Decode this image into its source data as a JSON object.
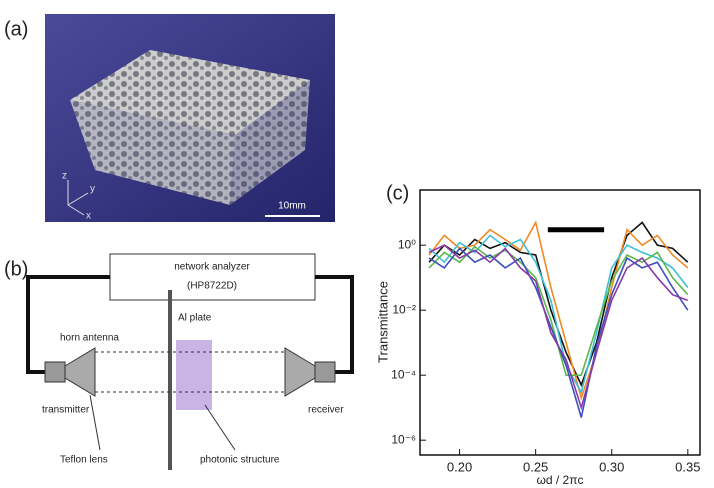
{
  "panels": {
    "a": "(a)",
    "b": "(b)"
  },
  "photo": {
    "scale_bar": "10mm",
    "axes": [
      "z",
      "y",
      "x"
    ]
  },
  "diagram": {
    "analyzer": "network analyzer",
    "model": "(HP8722D)",
    "horn": "horn antenna",
    "plate": "Al plate",
    "transmitter": "transmitter",
    "lens": "Teflon lens",
    "structure": "photonic structure",
    "receiver": "receiver"
  },
  "chart_data": {
    "type": "line",
    "label": "(c)",
    "ylabel": "Transmittance",
    "xlabel": "ωd / 2πc",
    "log_y": true,
    "x": [
      0.18,
      0.19,
      0.2,
      0.21,
      0.22,
      0.23,
      0.24,
      0.25,
      0.26,
      0.27,
      0.28,
      0.29,
      0.3,
      0.31,
      0.32,
      0.33,
      0.34,
      0.35
    ],
    "series": [
      {
        "color": "#111111",
        "values": [
          0.3,
          1.0,
          0.5,
          1.5,
          0.8,
          1.2,
          0.6,
          0.5,
          0.01,
          0.0005,
          5e-05,
          0.001,
          0.1,
          2,
          5,
          1,
          0.8,
          0.3
        ]
      },
      {
        "color": "#f08a24",
        "values": [
          0.5,
          2,
          0.8,
          1,
          3,
          1.5,
          0.7,
          5,
          0.05,
          0.001,
          2e-05,
          0.0005,
          0.05,
          3,
          1,
          2,
          0.5,
          0.2
        ]
      },
      {
        "color": "#3cc0d8",
        "values": [
          0.8,
          0.3,
          1.2,
          0.6,
          2,
          0.9,
          1.5,
          0.3,
          0.02,
          0.0002,
          3e-05,
          0.002,
          0.2,
          1,
          0.6,
          0.4,
          0.2,
          0.05
        ]
      },
      {
        "color": "#5cb84a",
        "values": [
          0.2,
          0.6,
          0.3,
          0.9,
          0.4,
          0.7,
          0.3,
          0.1,
          0.005,
          0.0001,
          0.0001,
          0.003,
          0.08,
          0.5,
          0.3,
          0.6,
          0.1,
          0.03
        ]
      },
      {
        "color": "#3b4fc0",
        "values": [
          0.4,
          0.2,
          0.8,
          0.3,
          0.5,
          0.2,
          0.4,
          0.05,
          0.003,
          0.0002,
          5e-06,
          0.0008,
          0.03,
          0.4,
          0.2,
          0.3,
          0.05,
          0.01
        ]
      },
      {
        "color": "#8a3aa8",
        "values": [
          0.6,
          1,
          0.4,
          0.7,
          0.3,
          0.8,
          0.2,
          0.08,
          0.002,
          0.0003,
          1e-05,
          0.0005,
          0.02,
          0.2,
          0.4,
          0.1,
          0.03,
          0.02
        ]
      }
    ],
    "band_gap_bar": {
      "x": [
        0.258,
        0.295
      ],
      "y": 3
    },
    "xlim": [
      0.174,
      0.358
    ],
    "ylim": [
      3.5e-07,
      50
    ],
    "xticks": [
      {
        "value": 0.2,
        "label": "0.20"
      },
      0.25,
      {
        "value": 0.3,
        "label": "0.30"
      },
      0.35
    ],
    "yticks": [
      {
        "value": 1,
        "label": "10⁰"
      },
      {
        "value": 0.01,
        "label": "10⁻²"
      },
      {
        "value": 0.0001,
        "label": "10⁻⁴"
      },
      {
        "value": 1e-06,
        "label": "10⁻⁶"
      }
    ]
  }
}
